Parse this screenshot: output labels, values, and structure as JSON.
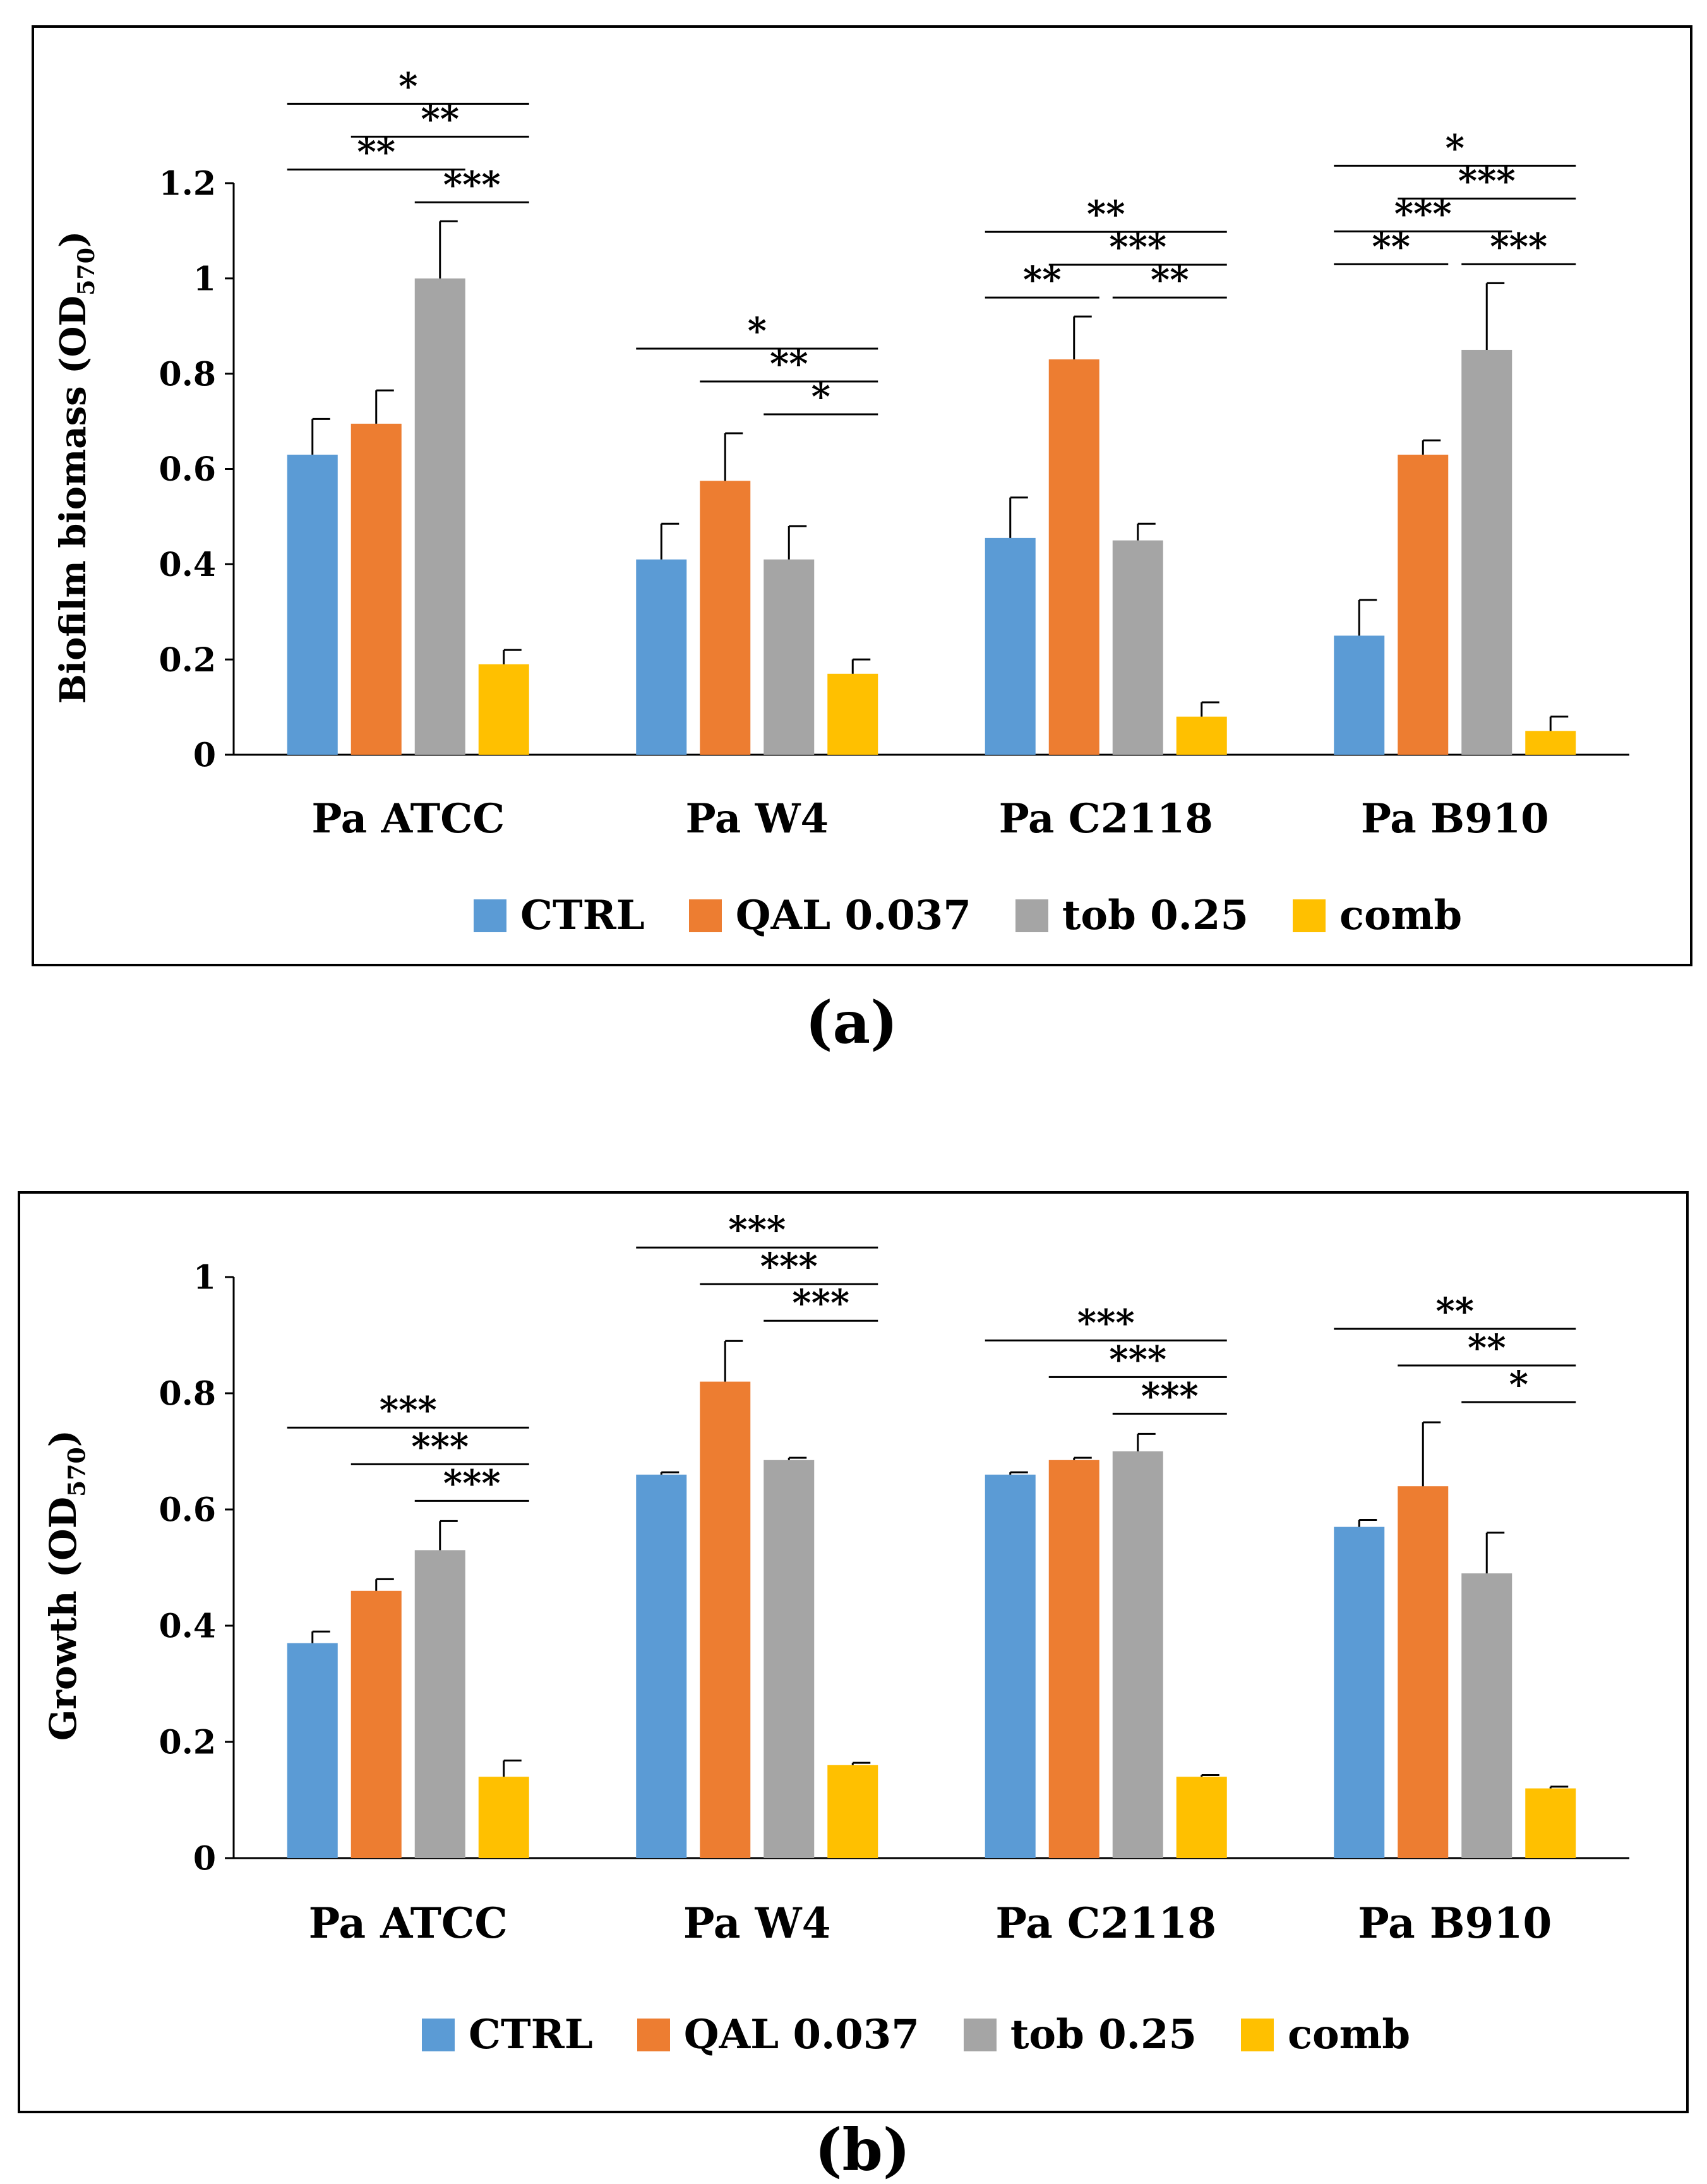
{
  "colors": {
    "CTRL": "#5b9bd5",
    "QAL 0.037": "#ed7d31",
    "tob 0.25": "#a5a5a5",
    "comb": "#ffc000"
  },
  "chart_data": [
    {
      "type": "bar",
      "panel_label": "(a)",
      "ylabel": "Biofilm biomass (OD",
      "ylabel_sub": "570",
      "ylabel_close": ")",
      "categories": [
        "Pa ATCC",
        "Pa W4",
        "Pa C2118",
        "Pa B910"
      ],
      "ylim": [
        0,
        1.2
      ],
      "yticks": [
        0,
        0.2,
        0.4,
        0.6,
        0.8,
        1,
        1.2
      ],
      "ytick_labels": [
        "0",
        "0.2",
        "0.4",
        "0.6",
        "0.8",
        "1",
        "1.2"
      ],
      "series": [
        {
          "name": "CTRL",
          "values": [
            0.63,
            0.41,
            0.455,
            0.25
          ],
          "errors": [
            0.075,
            0.075,
            0.085,
            0.075
          ]
        },
        {
          "name": "QAL 0.037",
          "values": [
            0.695,
            0.575,
            0.83,
            0.63
          ],
          "errors": [
            0.07,
            0.1,
            0.09,
            0.03
          ]
        },
        {
          "name": "tob 0.25",
          "values": [
            1.0,
            0.41,
            0.45,
            0.85
          ],
          "errors": [
            0.12,
            0.07,
            0.035,
            0.14
          ]
        },
        {
          "name": "comb",
          "values": [
            0.19,
            0.17,
            0.08,
            0.05
          ],
          "errors": [
            0.03,
            0.03,
            0.03,
            0.03
          ]
        }
      ],
      "significance": [
        {
          "category": 0,
          "from": 0,
          "to": 2,
          "label": "**"
        },
        {
          "category": 0,
          "from": 2,
          "to": 3,
          "label": "***"
        },
        {
          "category": 0,
          "from": 1,
          "to": 3,
          "label": "**"
        },
        {
          "category": 0,
          "from": 0,
          "to": 3,
          "label": "*"
        },
        {
          "category": 1,
          "from": 2,
          "to": 3,
          "label": "*"
        },
        {
          "category": 1,
          "from": 1,
          "to": 3,
          "label": "**"
        },
        {
          "category": 1,
          "from": 0,
          "to": 3,
          "label": "*"
        },
        {
          "category": 2,
          "from": 0,
          "to": 1,
          "label": "**"
        },
        {
          "category": 2,
          "from": 2,
          "to": 3,
          "label": "**"
        },
        {
          "category": 2,
          "from": 1,
          "to": 3,
          "label": "***"
        },
        {
          "category": 2,
          "from": 0,
          "to": 3,
          "label": "**"
        },
        {
          "category": 3,
          "from": 0,
          "to": 2,
          "label": "***"
        },
        {
          "category": 3,
          "from": 0,
          "to": 1,
          "label": "**"
        },
        {
          "category": 3,
          "from": 2,
          "to": 3,
          "label": "***"
        },
        {
          "category": 3,
          "from": 1,
          "to": 3,
          "label": "***"
        },
        {
          "category": 3,
          "from": 0,
          "to": 3,
          "label": "*"
        }
      ]
    },
    {
      "type": "bar",
      "panel_label": "(b)",
      "ylabel": "Growth (OD",
      "ylabel_sub": "570",
      "ylabel_close": ")",
      "categories": [
        "Pa ATCC",
        "Pa W4",
        "Pa C2118",
        "Pa B910"
      ],
      "ylim": [
        0,
        1
      ],
      "yticks": [
        0,
        0.2,
        0.4,
        0.6,
        0.8,
        1
      ],
      "ytick_labels": [
        "0",
        "0.2",
        "0.4",
        "0.6",
        "0.8",
        "1"
      ],
      "series": [
        {
          "name": "CTRL",
          "values": [
            0.37,
            0.66,
            0.66,
            0.57
          ],
          "errors": [
            0.02,
            0.004,
            0.004,
            0.012
          ]
        },
        {
          "name": "QAL 0.037",
          "values": [
            0.46,
            0.82,
            0.685,
            0.64
          ],
          "errors": [
            0.02,
            0.07,
            0.004,
            0.11
          ]
        },
        {
          "name": "tob 0.25",
          "values": [
            0.53,
            0.685,
            0.7,
            0.49
          ],
          "errors": [
            0.05,
            0.004,
            0.03,
            0.07
          ]
        },
        {
          "name": "comb",
          "values": [
            0.14,
            0.16,
            0.14,
            0.12
          ],
          "errors": [
            0.028,
            0.004,
            0.003,
            0.003
          ]
        }
      ],
      "significance": [
        {
          "category": 0,
          "from": 2,
          "to": 3,
          "label": "***"
        },
        {
          "category": 0,
          "from": 1,
          "to": 3,
          "label": "***"
        },
        {
          "category": 0,
          "from": 0,
          "to": 3,
          "label": "***"
        },
        {
          "category": 1,
          "from": 2,
          "to": 3,
          "label": "***"
        },
        {
          "category": 1,
          "from": 1,
          "to": 3,
          "label": "***"
        },
        {
          "category": 1,
          "from": 0,
          "to": 3,
          "label": "***"
        },
        {
          "category": 2,
          "from": 2,
          "to": 3,
          "label": "***"
        },
        {
          "category": 2,
          "from": 1,
          "to": 3,
          "label": "***"
        },
        {
          "category": 2,
          "from": 0,
          "to": 3,
          "label": "***"
        },
        {
          "category": 3,
          "from": 2,
          "to": 3,
          "label": "*"
        },
        {
          "category": 3,
          "from": 1,
          "to": 3,
          "label": "**"
        },
        {
          "category": 3,
          "from": 0,
          "to": 3,
          "label": "**"
        }
      ]
    }
  ]
}
